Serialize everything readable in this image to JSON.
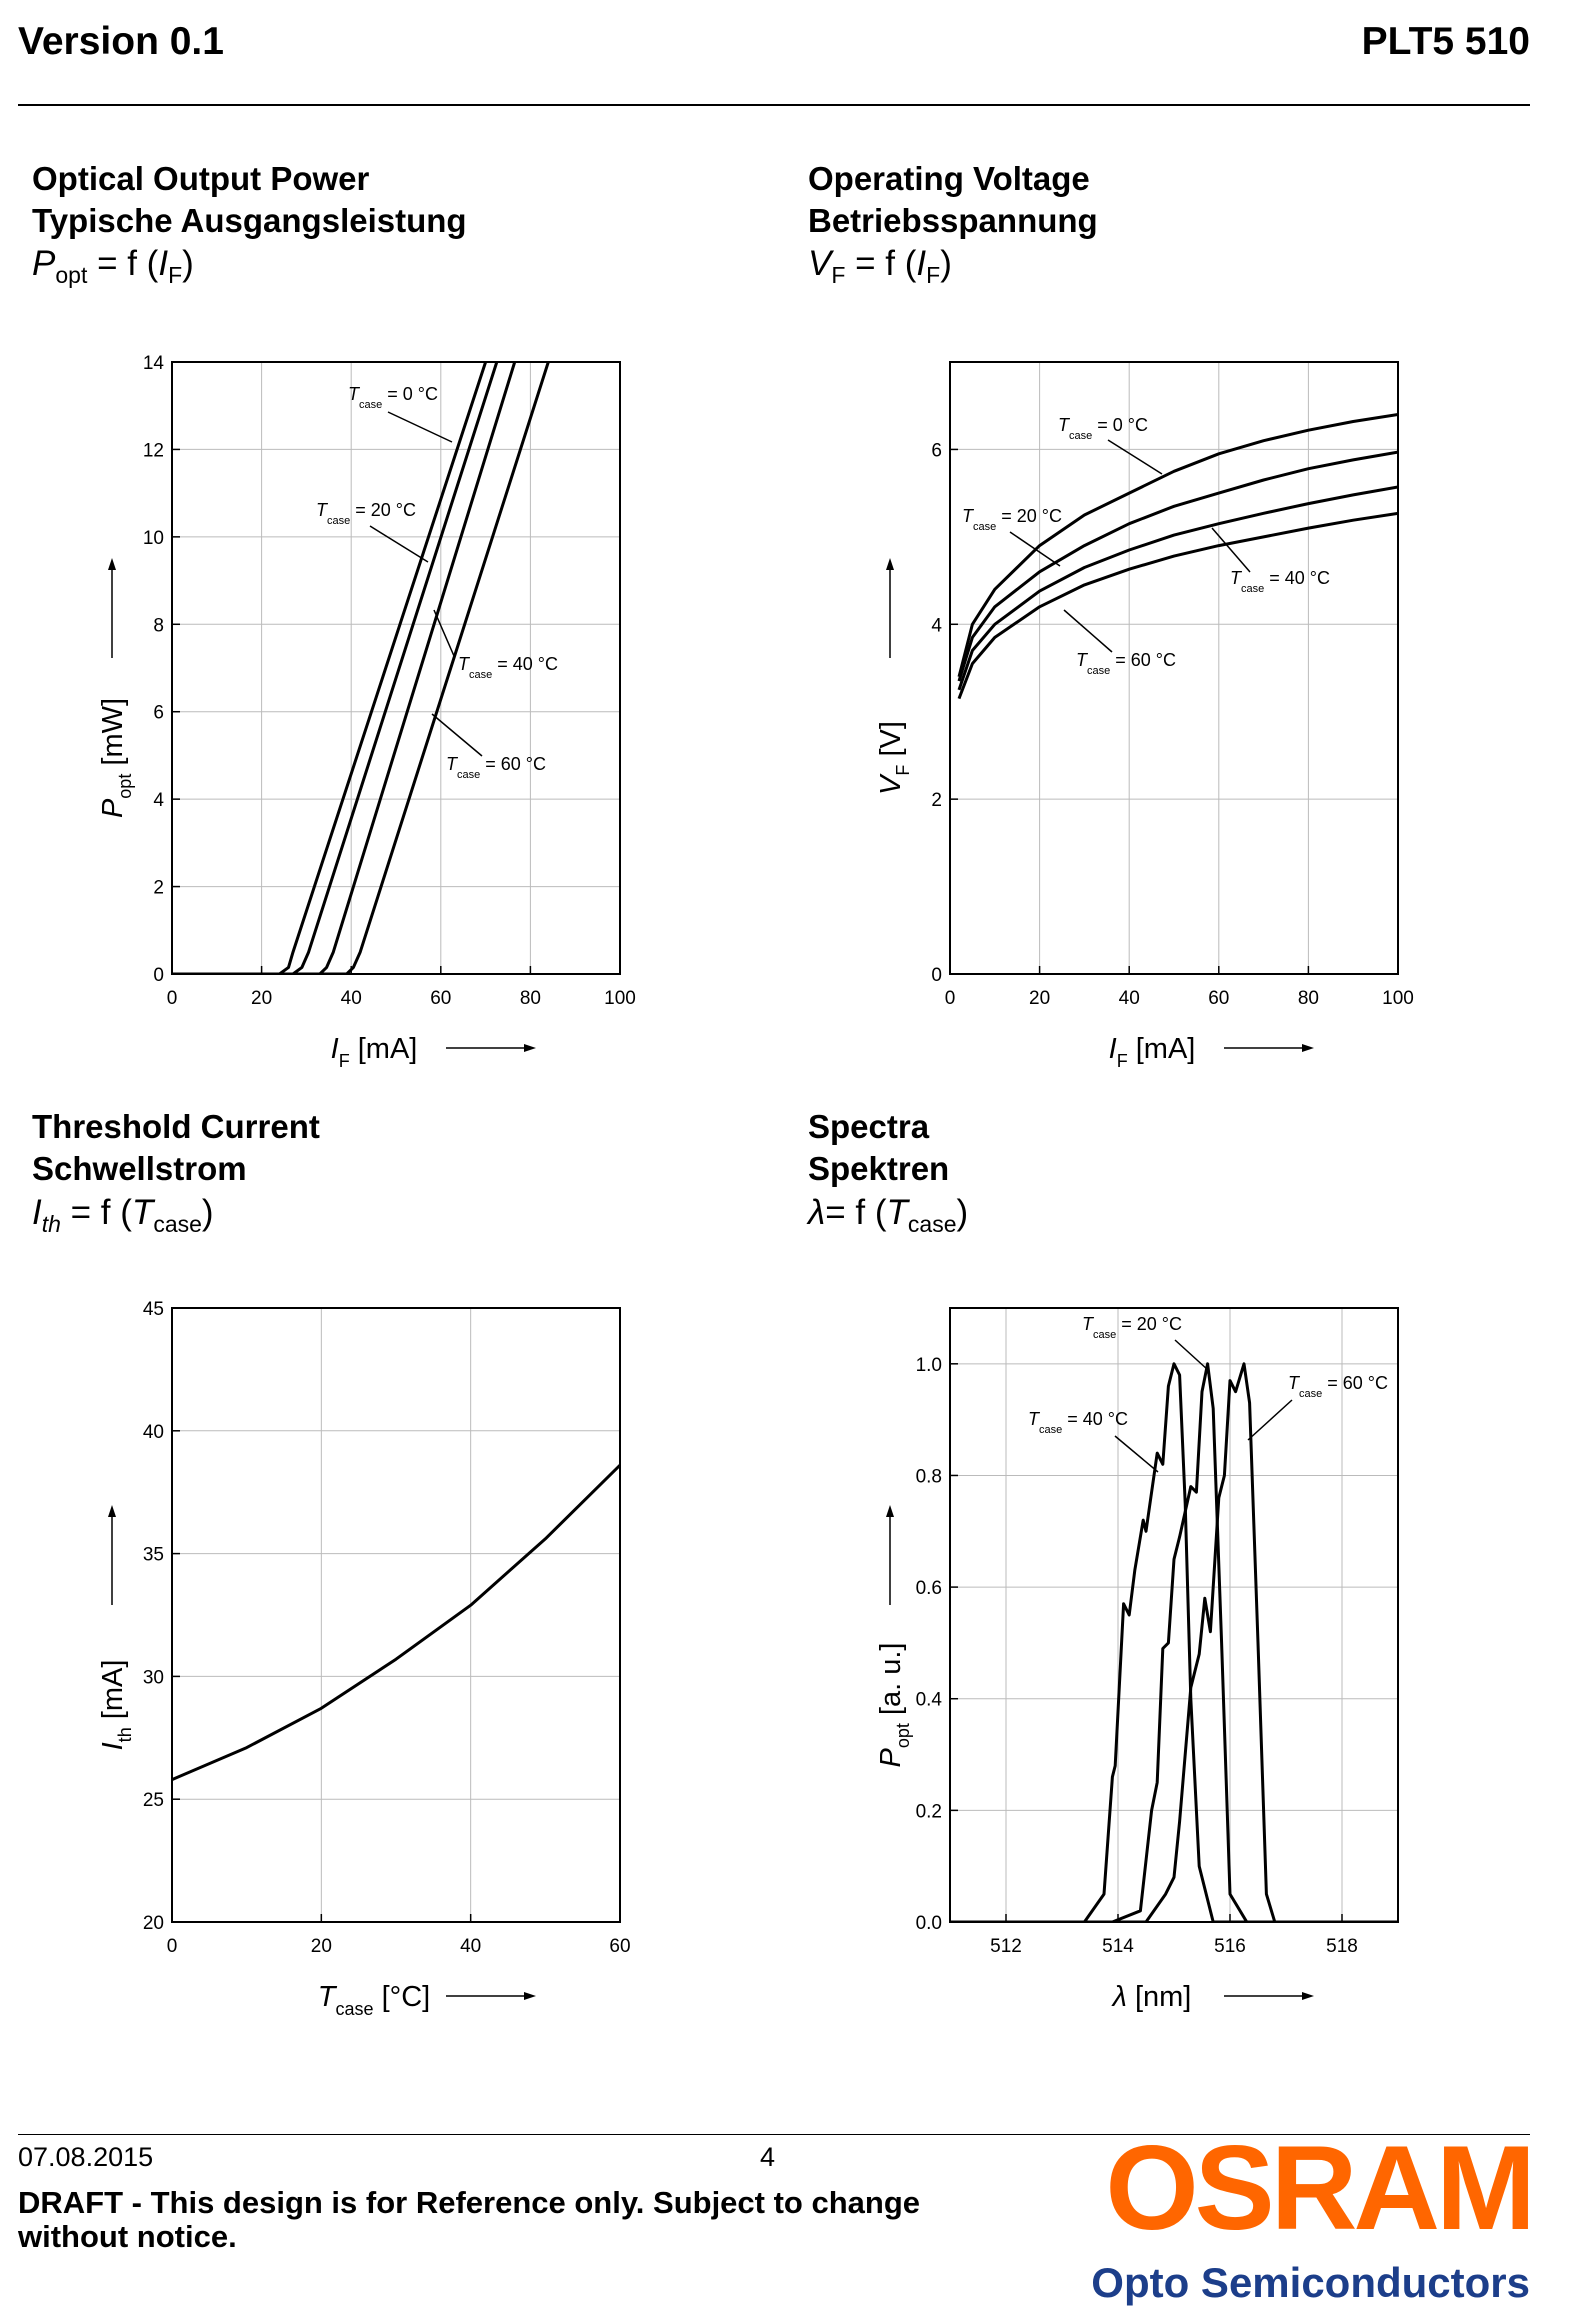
{
  "header": {
    "version": "Version 0.1",
    "product": "PLT5 510"
  },
  "sections": {
    "power": {
      "title_en": "Optical Output Power",
      "title_de": "Typische Ausgangsleistung"
    },
    "voltage": {
      "title_en": "Operating Voltage",
      "title_de": "Betriebsspannung"
    },
    "threshold": {
      "title_en": "Threshold Current",
      "title_de": "Schwellstrom"
    },
    "spectra": {
      "title_en": "Spectra",
      "title_de": "Spektren"
    }
  },
  "formulas": {
    "power": {
      "sym": "P",
      "sub": "opt",
      "eq": " = f (",
      "arg": "I",
      "arg_sub": "F",
      "close": ")"
    },
    "voltage": {
      "sym": "V",
      "sub": "F",
      "eq": " = f (",
      "arg": "I",
      "arg_sub": "F",
      "close": ")"
    },
    "threshold": {
      "sym": "I",
      "sub": "th",
      "eq": " = f (",
      "arg": "T",
      "arg_sub": "case",
      "close": ")"
    },
    "spectra": {
      "sym": "λ",
      "sub": "",
      "eq": "= f (",
      "arg": "T",
      "arg_sub": "case",
      "close": ")"
    }
  },
  "chart_data": [
    {
      "id": "power",
      "type": "line",
      "xlabel": "I",
      "xlabel_sub": "F",
      "xlabel_unit": "[mA]",
      "ylabel": "P",
      "ylabel_sub": "opt",
      "ylabel_unit": "[mW]",
      "xlim": [
        0,
        100
      ],
      "ylim": [
        0,
        14
      ],
      "xticks": [
        0,
        20,
        40,
        60,
        80,
        100
      ],
      "yticks": [
        0,
        2,
        4,
        6,
        8,
        10,
        12,
        14
      ],
      "grid": true,
      "series": [
        {
          "name": "T = 0 °C",
          "label_main": "T",
          "label_sub": "case",
          "label_val": " = 0 °C",
          "x": [
            0,
            24,
            26,
            27,
            70
          ],
          "y": [
            0,
            0,
            0.15,
            0.5,
            14
          ]
        },
        {
          "name": "T = 20 °C",
          "label_main": "T",
          "label_sub": "case",
          "label_val": " = 20 °C",
          "x": [
            0,
            27,
            29,
            30.5,
            72.5
          ],
          "y": [
            0,
            0,
            0.15,
            0.5,
            14
          ]
        },
        {
          "name": "T = 40 °C",
          "label_main": "T",
          "label_sub": "case",
          "label_val": " = 40 °C",
          "x": [
            0,
            33,
            34.5,
            36,
            76.5
          ],
          "y": [
            0,
            0,
            0.15,
            0.5,
            14
          ]
        },
        {
          "name": "T = 60 °C",
          "label_main": "T",
          "label_sub": "case",
          "label_val": " = 60 °C",
          "x": [
            0,
            39,
            40.5,
            42,
            84
          ],
          "y": [
            0,
            0,
            0.15,
            0.5,
            14
          ]
        }
      ]
    },
    {
      "id": "voltage",
      "type": "line",
      "xlabel": "I",
      "xlabel_sub": "F",
      "xlabel_unit": "[mA]",
      "ylabel": "V",
      "ylabel_sub": "F",
      "ylabel_unit": "[V]",
      "xlim": [
        0,
        100
      ],
      "ylim": [
        0,
        7
      ],
      "xticks": [
        0,
        20,
        40,
        60,
        80,
        100
      ],
      "yticks": [
        0,
        2,
        4,
        6
      ],
      "grid": true,
      "series": [
        {
          "name": "T = 0 °C",
          "label_main": "T",
          "label_sub": "case",
          "label_val": " = 0 °C",
          "x": [
            2,
            5,
            10,
            20,
            30,
            40,
            50,
            60,
            70,
            80,
            90,
            100
          ],
          "y": [
            3.4,
            4.0,
            4.4,
            4.9,
            5.25,
            5.5,
            5.75,
            5.95,
            6.1,
            6.22,
            6.32,
            6.4
          ]
        },
        {
          "name": "T = 20 °C",
          "label_main": "T",
          "label_sub": "case",
          "label_val": " = 20 °C",
          "x": [
            2,
            5,
            10,
            20,
            30,
            40,
            50,
            60,
            70,
            80,
            90,
            100
          ],
          "y": [
            3.35,
            3.85,
            4.2,
            4.6,
            4.9,
            5.15,
            5.35,
            5.5,
            5.65,
            5.78,
            5.88,
            5.97
          ]
        },
        {
          "name": "T = 40 °C",
          "label_main": "T",
          "label_sub": "case",
          "label_val": " = 40 °C",
          "x": [
            2,
            5,
            10,
            20,
            30,
            40,
            50,
            60,
            70,
            80,
            90,
            100
          ],
          "y": [
            3.25,
            3.7,
            4.0,
            4.38,
            4.65,
            4.85,
            5.02,
            5.15,
            5.27,
            5.38,
            5.48,
            5.57
          ]
        },
        {
          "name": "T = 60 °C",
          "label_main": "T",
          "label_sub": "case",
          "label_val": " = 60 °C",
          "x": [
            2,
            5,
            10,
            20,
            30,
            40,
            50,
            60,
            70,
            80,
            90,
            100
          ],
          "y": [
            3.15,
            3.55,
            3.85,
            4.2,
            4.45,
            4.63,
            4.78,
            4.9,
            5.0,
            5.1,
            5.19,
            5.27
          ]
        }
      ]
    },
    {
      "id": "threshold",
      "type": "line",
      "xlabel": "T",
      "xlabel_sub": "case",
      "xlabel_unit": "[°C]",
      "ylabel": "I",
      "ylabel_sub": "th",
      "ylabel_unit": "[mA]",
      "xlim": [
        0,
        60
      ],
      "ylim": [
        20,
        45
      ],
      "xticks": [
        0,
        20,
        40,
        60
      ],
      "yticks": [
        20,
        25,
        30,
        35,
        40,
        45
      ],
      "grid": true,
      "series": [
        {
          "name": "Ith",
          "x": [
            0,
            10,
            20,
            30,
            40,
            50,
            60
          ],
          "y": [
            25.8,
            27.1,
            28.7,
            30.7,
            32.9,
            35.6,
            38.6
          ]
        }
      ]
    },
    {
      "id": "spectra",
      "type": "line",
      "xlabel": "λ",
      "xlabel_sub": "",
      "xlabel_unit": "[nm]",
      "ylabel": "P",
      "ylabel_sub": "opt",
      "ylabel_unit": "[a. u.]",
      "xlim": [
        511,
        519
      ],
      "ylim": [
        0,
        1.1
      ],
      "xticks": [
        512,
        514,
        516,
        518
      ],
      "xtick_labels": [
        "512",
        "514",
        "516",
        "518"
      ],
      "yticks": [
        0,
        0.2,
        0.4,
        0.6,
        0.8,
        1.0
      ],
      "ytick_labels": [
        "0.0",
        "0.2",
        "0.4",
        "0.6",
        "0.8",
        "1.0"
      ],
      "grid": true,
      "series": [
        {
          "name": "T = 20 °C",
          "label_main": "T",
          "label_sub": "case",
          "label_val": " = 20 °C",
          "x": [
            511,
            513.4,
            513.75,
            513.9,
            513.95,
            514.1,
            514.2,
            514.3,
            514.45,
            514.5,
            514.6,
            514.7,
            514.8,
            514.9,
            515.0,
            515.1,
            515.2,
            515.3,
            515.45,
            515.7,
            519
          ],
          "y": [
            0,
            0,
            0.05,
            0.26,
            0.28,
            0.57,
            0.55,
            0.63,
            0.72,
            0.7,
            0.77,
            0.84,
            0.82,
            0.96,
            1.0,
            0.98,
            0.75,
            0.4,
            0.1,
            0,
            0
          ]
        },
        {
          "name": "T = 40 °C",
          "label_main": "T",
          "label_sub": "case",
          "label_val": " = 40 °C",
          "x": [
            511,
            513.9,
            514.4,
            514.6,
            514.7,
            514.8,
            514.9,
            515.0,
            515.1,
            515.3,
            515.4,
            515.5,
            515.6,
            515.7,
            515.85,
            516.0,
            516.3,
            519
          ],
          "y": [
            0,
            0,
            0.02,
            0.2,
            0.25,
            0.49,
            0.5,
            0.65,
            0.69,
            0.78,
            0.77,
            0.95,
            1.0,
            0.92,
            0.5,
            0.05,
            0,
            0
          ]
        },
        {
          "name": "T = 60 °C",
          "label_main": "T",
          "label_sub": "case",
          "label_val": " = 60 °C",
          "x": [
            511,
            514.5,
            514.85,
            515.0,
            515.1,
            515.3,
            515.45,
            515.55,
            515.65,
            515.8,
            515.9,
            516.0,
            516.1,
            516.25,
            516.35,
            516.5,
            516.65,
            516.8,
            519
          ],
          "y": [
            0,
            0,
            0.05,
            0.08,
            0.18,
            0.42,
            0.48,
            0.58,
            0.52,
            0.76,
            0.8,
            0.97,
            0.95,
            1.0,
            0.93,
            0.5,
            0.05,
            0,
            0
          ]
        }
      ]
    }
  ],
  "footer": {
    "date": "07.08.2015",
    "page": "4",
    "draft_notice": "DRAFT - This design is for Reference only. Subject to change without notice.",
    "logo": "OSRAM",
    "logo_sub": "Opto Semiconductors",
    "logo_color": "#ff6600",
    "logo_sub_color": "#1c3e8a"
  }
}
